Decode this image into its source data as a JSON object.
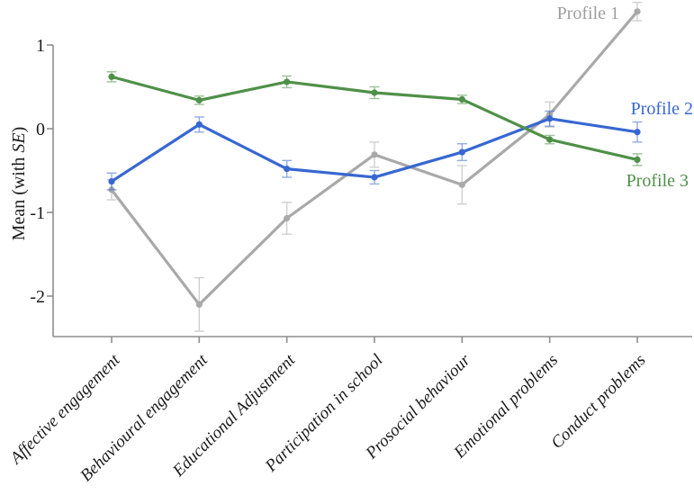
{
  "figure": {
    "description": "Profile plot of means with standard errors across school adjustment measures"
  },
  "chart_data": {
    "type": "line",
    "title": "",
    "ylabel": "Mean (with SE)",
    "ylabel_parts": {
      "prefix": "Mean (with ",
      "italic": "SE",
      "suffix": ")"
    },
    "categories": [
      "Affective engagement",
      "Behavioural engagement",
      "Educational Adjustment",
      "Participation in school",
      "Prosocial behaviour",
      "Emotional problems",
      "Conduct problems"
    ],
    "ytick_labels": [
      "1",
      "0",
      "-1",
      "-2"
    ],
    "ytick_values": [
      1,
      0,
      -1,
      -2
    ],
    "ylim": [
      -2.5,
      1.55
    ],
    "grid": false,
    "legend_position": "inline-right",
    "axis_color": "#8e8e8e",
    "text_color": "#1b1b1b",
    "series": [
      {
        "name": "Profile 1",
        "color": "#a9a9a9",
        "label_color": "#9d9d9d",
        "values": [
          -0.73,
          -2.1,
          -1.07,
          -0.31,
          -0.67,
          0.17,
          1.4
        ],
        "se": [
          0.12,
          0.32,
          0.19,
          0.15,
          0.23,
          0.15,
          0.11
        ]
      },
      {
        "name": "Profile 2",
        "color": "#3767d1",
        "label_color": "#3767d1",
        "values": [
          -0.63,
          0.05,
          -0.48,
          -0.58,
          -0.28,
          0.12,
          -0.04
        ],
        "se": [
          0.1,
          0.09,
          0.1,
          0.08,
          0.1,
          0.09,
          0.12
        ]
      },
      {
        "name": "Profile 3",
        "color": "#4f9048",
        "label_color": "#4f9048",
        "values": [
          0.62,
          0.34,
          0.56,
          0.43,
          0.35,
          -0.13,
          -0.37
        ],
        "se": [
          0.06,
          0.05,
          0.07,
          0.07,
          0.05,
          0.05,
          0.07
        ]
      }
    ]
  }
}
